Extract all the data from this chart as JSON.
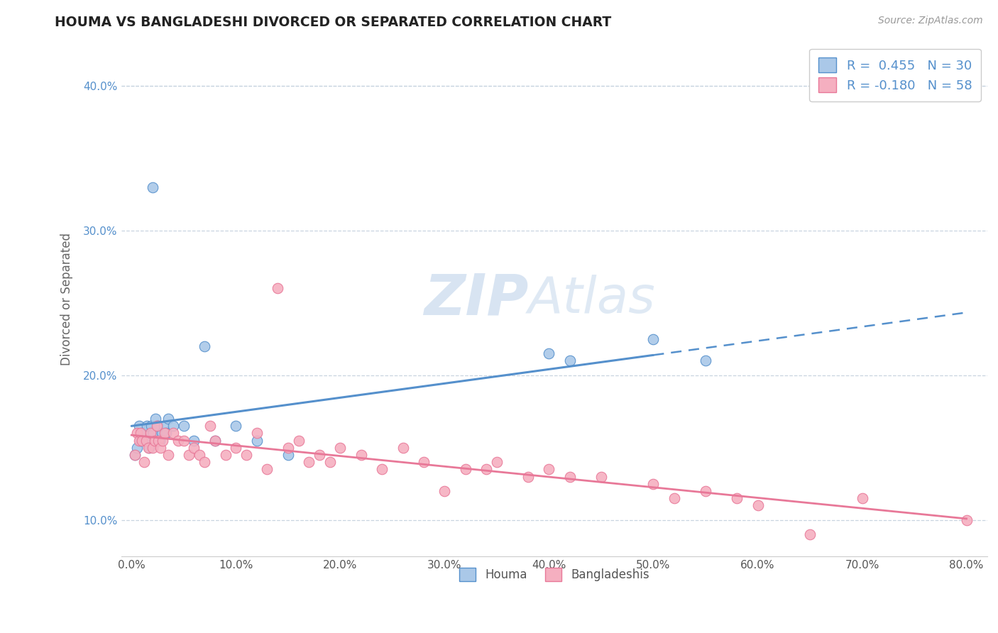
{
  "title": "HOUMA VS BANGLADESHI DIVORCED OR SEPARATED CORRELATION CHART",
  "source_text": "Source: ZipAtlas.com",
  "ylabel": "Divorced or Separated",
  "xlim": [
    -1.0,
    82.0
  ],
  "ylim": [
    7.5,
    43.0
  ],
  "xticks": [
    0.0,
    10.0,
    20.0,
    30.0,
    40.0,
    50.0,
    60.0,
    70.0,
    80.0
  ],
  "yticks": [
    10.0,
    20.0,
    30.0,
    40.0
  ],
  "houma_R": 0.455,
  "houma_N": 30,
  "bangladeshi_R": -0.18,
  "bangladeshi_N": 58,
  "houma_color": "#aac8e8",
  "bangladeshi_color": "#f5afc0",
  "houma_line_color": "#5590cc",
  "bangladeshi_line_color": "#e87898",
  "watermark": "ZIPAtlas",
  "watermark_color": "#c5d8ec",
  "background_color": "#ffffff",
  "grid_color": "#c8d4e0",
  "houma_x": [
    2.0,
    0.3,
    0.5,
    0.7,
    0.9,
    1.1,
    1.3,
    1.5,
    1.7,
    1.9,
    2.1,
    2.3,
    2.5,
    2.7,
    2.9,
    3.1,
    3.3,
    3.5,
    4.0,
    5.0,
    6.0,
    7.0,
    8.0,
    10.0,
    12.0,
    15.0,
    40.0,
    42.0,
    50.0,
    55.0
  ],
  "houma_y": [
    33.0,
    14.5,
    15.0,
    16.5,
    15.5,
    16.0,
    15.5,
    16.5,
    15.0,
    16.5,
    16.0,
    17.0,
    16.5,
    15.5,
    16.0,
    16.5,
    16.0,
    17.0,
    16.5,
    16.5,
    15.5,
    22.0,
    15.5,
    16.5,
    15.5,
    14.5,
    21.5,
    21.0,
    22.5,
    21.0
  ],
  "bangladeshi_x": [
    0.3,
    0.5,
    0.7,
    0.9,
    1.0,
    1.2,
    1.4,
    1.6,
    1.8,
    2.0,
    2.2,
    2.4,
    2.6,
    2.8,
    3.0,
    3.2,
    3.5,
    4.0,
    4.5,
    5.0,
    5.5,
    6.0,
    6.5,
    7.0,
    7.5,
    8.0,
    9.0,
    10.0,
    11.0,
    12.0,
    13.0,
    14.0,
    15.0,
    16.0,
    17.0,
    18.0,
    19.0,
    20.0,
    22.0,
    24.0,
    26.0,
    28.0,
    30.0,
    32.0,
    34.0,
    35.0,
    38.0,
    40.0,
    42.0,
    45.0,
    50.0,
    52.0,
    55.0,
    58.0,
    60.0,
    65.0,
    70.0,
    80.0
  ],
  "bangladeshi_y": [
    14.5,
    16.0,
    15.5,
    16.0,
    15.5,
    14.0,
    15.5,
    15.0,
    16.0,
    15.0,
    15.5,
    16.5,
    15.5,
    15.0,
    15.5,
    16.0,
    14.5,
    16.0,
    15.5,
    15.5,
    14.5,
    15.0,
    14.5,
    14.0,
    16.5,
    15.5,
    14.5,
    15.0,
    14.5,
    16.0,
    13.5,
    26.0,
    15.0,
    15.5,
    14.0,
    14.5,
    14.0,
    15.0,
    14.5,
    13.5,
    15.0,
    14.0,
    12.0,
    13.5,
    13.5,
    14.0,
    13.0,
    13.5,
    13.0,
    13.0,
    12.5,
    11.5,
    12.0,
    11.5,
    11.0,
    9.0,
    11.5,
    10.0
  ],
  "houma_line_solid_end": 50.0,
  "tick_color": "#5590cc"
}
